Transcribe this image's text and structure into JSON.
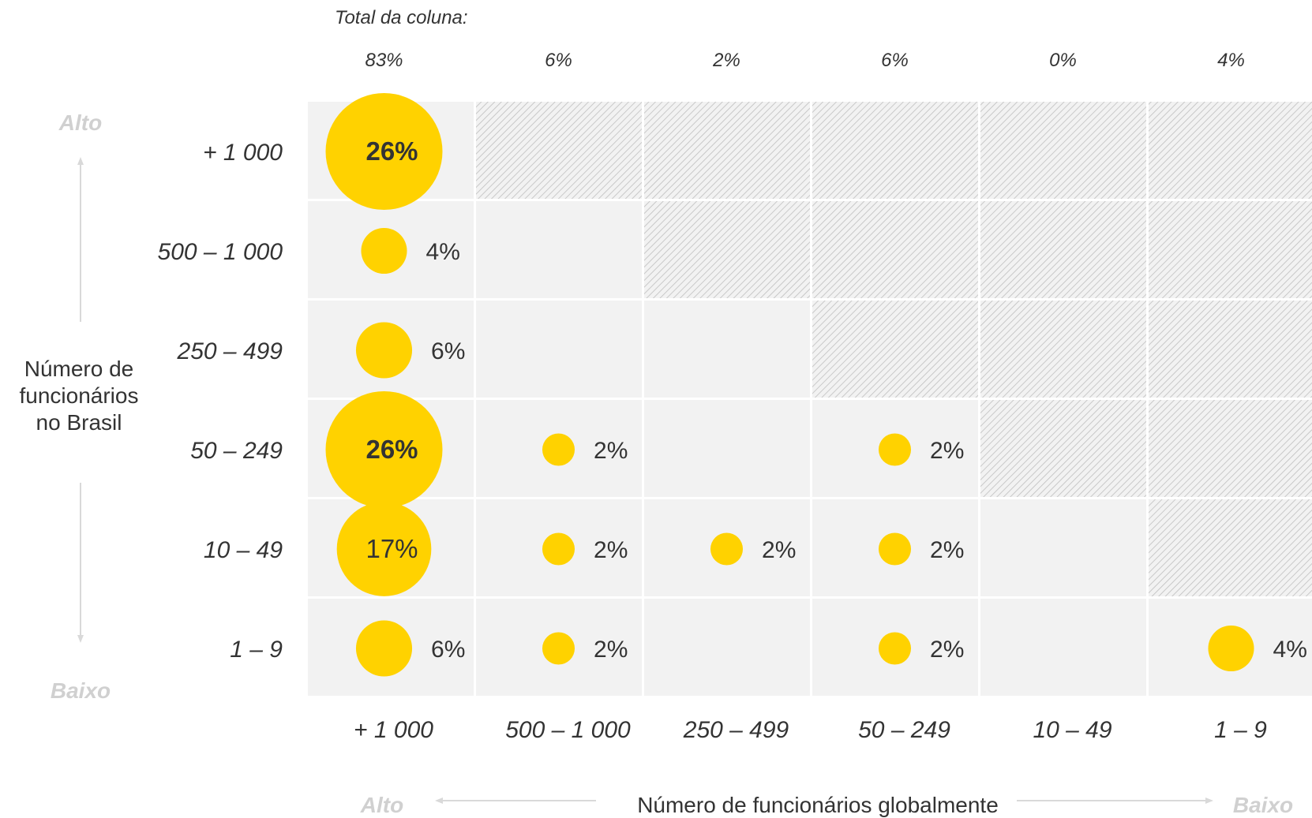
{
  "chart_data": {
    "type": "scatter",
    "title": "",
    "column_total_label": "Total da coluna:",
    "column_totals": [
      "83%",
      "6%",
      "2%",
      "6%",
      "0%",
      "4%"
    ],
    "column_categories": [
      "+ 1 000",
      "500 – 1 000",
      "250 – 499",
      "50 – 249",
      "10 – 49",
      "1 – 9"
    ],
    "row_categories": [
      "+ 1 000",
      "500 – 1 000",
      "250 – 499",
      "50 – 249",
      "10 – 49",
      "1 – 9"
    ],
    "ylabel": "Número de\nfuncionários\nno Brasil",
    "xlabel": "Número de funcionários globalmente",
    "y_high_label": "Alto",
    "y_low_label": "Baixo",
    "x_high_label": "Alto",
    "x_low_label": "Baixo",
    "cells": [
      {
        "row": 0,
        "col": 0,
        "value": 26,
        "label": "26%"
      },
      {
        "row": 1,
        "col": 0,
        "value": 4,
        "label": "4%"
      },
      {
        "row": 2,
        "col": 0,
        "value": 6,
        "label": "6%"
      },
      {
        "row": 3,
        "col": 0,
        "value": 26,
        "label": "26%"
      },
      {
        "row": 3,
        "col": 1,
        "value": 2,
        "label": "2%"
      },
      {
        "row": 3,
        "col": 3,
        "value": 2,
        "label": "2%"
      },
      {
        "row": 4,
        "col": 0,
        "value": 17,
        "label": "17%"
      },
      {
        "row": 4,
        "col": 1,
        "value": 2,
        "label": "2%"
      },
      {
        "row": 4,
        "col": 2,
        "value": 2,
        "label": "2%"
      },
      {
        "row": 4,
        "col": 3,
        "value": 2,
        "label": "2%"
      },
      {
        "row": 5,
        "col": 0,
        "value": 6,
        "label": "6%"
      },
      {
        "row": 5,
        "col": 1,
        "value": 2,
        "label": "2%"
      },
      {
        "row": 5,
        "col": 3,
        "value": 2,
        "label": "2%"
      },
      {
        "row": 5,
        "col": 5,
        "value": 4,
        "label": "4%"
      }
    ],
    "colors": {
      "bubble": "#FFD200",
      "cell": "#F2F2F2",
      "hatch_line": "#BFBFBF",
      "axis_text": "#333333",
      "muted_text": "#D0D0D0",
      "arrow": "#D9D9D9"
    }
  }
}
